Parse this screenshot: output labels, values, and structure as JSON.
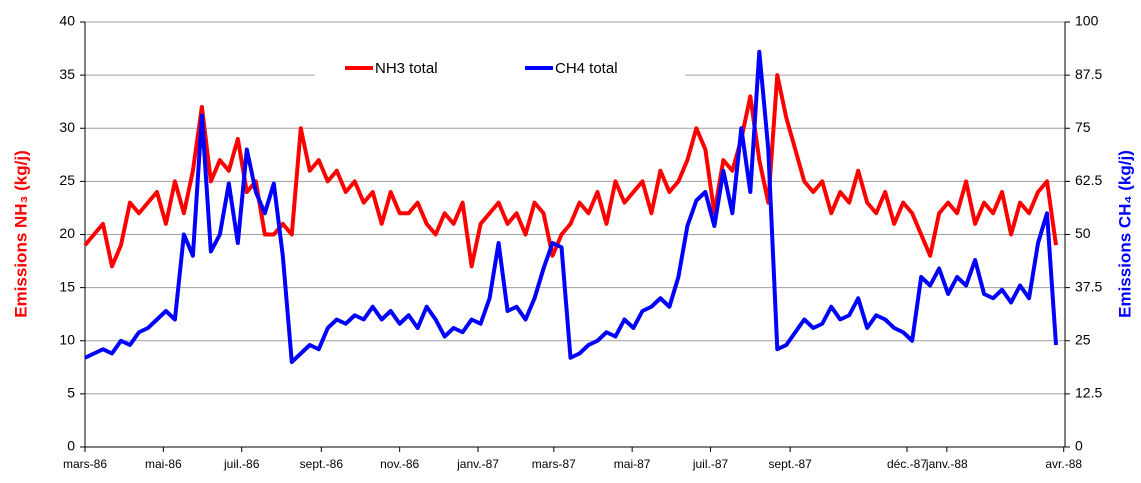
{
  "chart_data": {
    "type": "line",
    "y_label": "Emissions NH₃ (kg/j)",
    "y2_label": "Emissions CH₄ (kg/j)",
    "x": [
      0,
      7,
      14,
      21,
      28,
      35,
      42,
      49,
      56,
      63,
      70,
      77,
      84,
      91,
      98,
      105,
      112,
      119,
      126,
      133,
      140,
      147,
      154,
      161,
      168,
      175,
      182,
      189,
      196,
      203,
      210,
      217,
      224,
      231,
      238,
      245,
      252,
      259,
      266,
      273,
      280,
      287,
      294,
      301,
      308,
      315,
      322,
      329,
      336,
      343,
      350,
      357,
      364,
      371,
      378,
      385,
      392,
      399,
      406,
      413,
      420,
      427,
      434,
      441,
      448,
      455,
      462,
      469,
      476,
      483,
      490,
      497,
      504,
      511,
      518,
      525,
      532,
      539,
      546,
      553,
      560,
      567,
      574,
      581,
      588,
      595,
      602,
      609,
      616,
      623,
      630,
      637,
      644,
      651,
      658,
      665,
      672,
      679,
      686,
      693,
      700,
      707,
      714,
      721,
      728,
      735,
      742,
      749,
      756
    ],
    "xlim": [
      0,
      763
    ],
    "xticks": [
      {
        "value": 0,
        "label": "mars-86"
      },
      {
        "value": 61,
        "label": "mai-86"
      },
      {
        "value": 122,
        "label": "juil.-86"
      },
      {
        "value": 184,
        "label": "sept.-86"
      },
      {
        "value": 245,
        "label": "nov.-86"
      },
      {
        "value": 306,
        "label": "janv.-87"
      },
      {
        "value": 365,
        "label": "mars-87"
      },
      {
        "value": 426,
        "label": "mai-87"
      },
      {
        "value": 487,
        "label": "juil.-87"
      },
      {
        "value": 549,
        "label": "sept.-87"
      },
      {
        "value": 640,
        "label": "déc.-87"
      },
      {
        "value": 671,
        "label": "janv.-88"
      },
      {
        "value": 762,
        "label": "avr.-88"
      }
    ],
    "ylim": [
      0,
      40
    ],
    "yticks": [
      0,
      5,
      10,
      15,
      20,
      25,
      30,
      35,
      40
    ],
    "y2lim": [
      0,
      100
    ],
    "y2ticks": [
      0,
      12.5,
      25,
      37.5,
      50,
      62.5,
      75,
      87.5,
      100
    ],
    "grid": true,
    "legend": "top",
    "series": [
      {
        "name": "NH3 total",
        "color": "#ff0000",
        "values": [
          19,
          20,
          21,
          17,
          19,
          23,
          22,
          23,
          24,
          21,
          25,
          22,
          26,
          32,
          25,
          27,
          26,
          29,
          24,
          25,
          20,
          20,
          21,
          20,
          30,
          26,
          27,
          25,
          26,
          24,
          25,
          23,
          24,
          21,
          24,
          22,
          22,
          23,
          21,
          20,
          22,
          21,
          23,
          17,
          21,
          22,
          23,
          21,
          22,
          20,
          23,
          22,
          18,
          20,
          21,
          23,
          22,
          24,
          21,
          25,
          23,
          24,
          25,
          22,
          26,
          24,
          25,
          27,
          30,
          28,
          22,
          27,
          26,
          29,
          33,
          27,
          23,
          35,
          31,
          28,
          25,
          24,
          25,
          22,
          24,
          23,
          26,
          23,
          22,
          24,
          21,
          23,
          22,
          20,
          18,
          22,
          23,
          22,
          25,
          21,
          23,
          22,
          24,
          20,
          23,
          22,
          24,
          25,
          19
        ]
      },
      {
        "name": "CH4 total",
        "color": "#0000ff",
        "axis": "y2",
        "values": [
          21,
          22,
          23,
          22,
          25,
          24,
          27,
          28,
          30,
          32,
          30,
          50,
          45,
          78,
          46,
          50,
          62,
          48,
          70,
          60,
          55,
          62,
          45,
          20,
          22,
          24,
          23,
          28,
          30,
          29,
          31,
          30,
          33,
          30,
          32,
          29,
          31,
          28,
          33,
          30,
          26,
          28,
          27,
          30,
          29,
          35,
          48,
          32,
          33,
          30,
          35,
          42,
          48,
          47,
          21,
          22,
          24,
          25,
          27,
          26,
          30,
          28,
          32,
          33,
          35,
          33,
          40,
          52,
          58,
          60,
          52,
          65,
          55,
          75,
          60,
          93,
          70,
          23,
          24,
          27,
          30,
          28,
          29,
          33,
          30,
          31,
          35,
          28,
          31,
          30,
          28,
          27,
          25,
          40,
          38,
          42,
          36,
          40,
          38,
          44,
          36,
          35,
          37,
          34,
          38,
          35,
          48,
          55,
          24
        ]
      }
    ]
  }
}
